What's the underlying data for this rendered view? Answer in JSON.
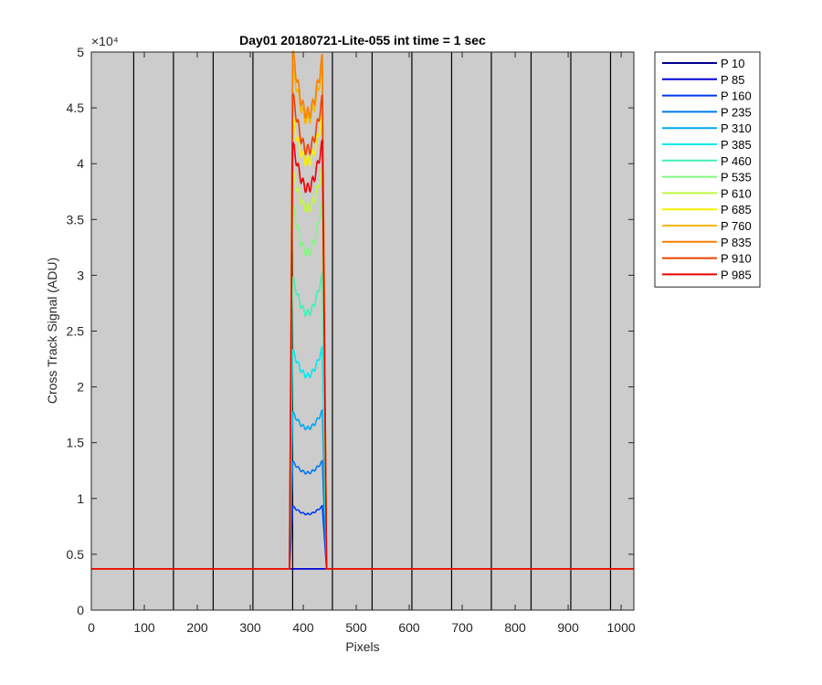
{
  "chart_data": {
    "type": "line",
    "title": "Day01 20180721-Lite-055 int time = 1 sec",
    "xlabel": "Pixels",
    "ylabel": "Cross Track Signal (ADU)",
    "xlim": [
      0,
      1024
    ],
    "ylim": [
      0,
      50000
    ],
    "y_exponent_label": "×10⁴",
    "xticks": [
      0,
      100,
      200,
      300,
      400,
      500,
      600,
      700,
      800,
      900,
      1000
    ],
    "xtick_labels": [
      "0",
      "100",
      "200",
      "300",
      "400",
      "500",
      "600",
      "700",
      "800",
      "900",
      "1000"
    ],
    "yticks": [
      0,
      5000,
      10000,
      15000,
      20000,
      25000,
      30000,
      35000,
      40000,
      45000,
      50000
    ],
    "ytick_labels": [
      "0",
      "0.5",
      "1",
      "1.5",
      "2",
      "2.5",
      "3",
      "3.5",
      "4",
      "4.5",
      "5"
    ],
    "background_color": "#cccccc",
    "vertical_lines_x": [
      80,
      155,
      230,
      305,
      380,
      455,
      530,
      605,
      680,
      755,
      830,
      905,
      980
    ],
    "legend_position": "outside-top-right",
    "baseline": 3700,
    "plateau_x": [
      380,
      436
    ],
    "series": [
      {
        "name": "P 10",
        "color": "#000090",
        "peak_left": 3700,
        "dip": 3700,
        "peak_right": 3700
      },
      {
        "name": "P 85",
        "color": "#0000d8",
        "peak_left": 3700,
        "dip": 3700,
        "peak_right": 3700
      },
      {
        "name": "P 160",
        "color": "#0038f0",
        "peak_left": 9300,
        "dip": 8600,
        "peak_right": 9300
      },
      {
        "name": "P 235",
        "color": "#0078f0",
        "peak_left": 13300,
        "dip": 12300,
        "peak_right": 13300
      },
      {
        "name": "P 310",
        "color": "#00a8f0",
        "peak_left": 17700,
        "dip": 16300,
        "peak_right": 17800
      },
      {
        "name": "P 385",
        "color": "#00e8f0",
        "peak_left": 23300,
        "dip": 21000,
        "peak_right": 23400
      },
      {
        "name": "P 460",
        "color": "#40f0b8",
        "peak_left": 29800,
        "dip": 26600,
        "peak_right": 30000
      },
      {
        "name": "P 535",
        "color": "#80f880",
        "peak_left": 36400,
        "dip": 32000,
        "peak_right": 36600
      },
      {
        "name": "P 610",
        "color": "#c0f840",
        "peak_left": 39200,
        "dip": 36000,
        "peak_right": 39400
      },
      {
        "name": "P 685",
        "color": "#f8f000",
        "peak_left": 44000,
        "dip": 40200,
        "peak_right": 44200
      },
      {
        "name": "P 760",
        "color": "#f8b800",
        "peak_left": 48800,
        "dip": 44000,
        "peak_right": 48600
      },
      {
        "name": "P 835",
        "color": "#f88000",
        "peak_left": 50000,
        "dip": 44500,
        "peak_right": 49400
      },
      {
        "name": "P 910",
        "color": "#f04000",
        "peak_left": 46200,
        "dip": 41200,
        "peak_right": 45800
      },
      {
        "name": "P 985",
        "color": "#f00000",
        "peak_left": 41800,
        "dip": 37800,
        "peak_right": 41800
      }
    ]
  }
}
